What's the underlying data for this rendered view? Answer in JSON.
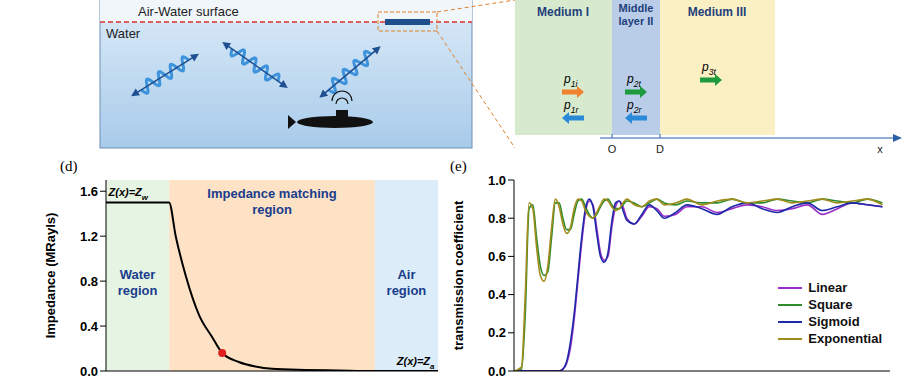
{
  "diagram": {
    "scene": {
      "surface_label": "Air-Water surface",
      "medium_label": "Water"
    },
    "layers": {
      "labels": [
        "Medium I",
        "Middle layer II",
        "Medium III"
      ],
      "waves": [
        "p1i",
        "p2t",
        "p3t",
        "p1r",
        "p2r"
      ],
      "axis": [
        "O",
        "D",
        "x"
      ]
    }
  },
  "chart_data": [
    {
      "type": "line",
      "title": "(d)",
      "y_label": "Impedance (MRayls)",
      "x": [
        0,
        1.9,
        2.1,
        2.4,
        2.8,
        3.2,
        3.5,
        4.0,
        4.5,
        5,
        6,
        7,
        8.1,
        10
      ],
      "values": [
        1.5,
        1.5,
        1.2,
        0.85,
        0.5,
        0.3,
        0.16,
        0.08,
        0.04,
        0.02,
        0.01,
        0.005,
        0.0004,
        0.0004
      ],
      "color": "#000000",
      "xlim": [
        0,
        10
      ],
      "ylim": [
        0,
        1.7
      ],
      "yticks": [
        {
          "value": 0,
          "label": "0.0"
        },
        0.4,
        0.8,
        1.2,
        1.6
      ],
      "tick_labels": "y",
      "regions": [
        {
          "label": "Water region",
          "x": [
            0,
            1.9
          ],
          "color": "#e6f4e4"
        },
        {
          "label": "Impedance matching region",
          "x": [
            1.9,
            8.1
          ],
          "color": "#fde2c6"
        },
        {
          "label": "Air region",
          "x": [
            8.1,
            10
          ],
          "color": "#dcecf9"
        }
      ],
      "annotations": [
        {
          "text": "Z(x)=Zw",
          "x": 0,
          "y": 1.5
        },
        {
          "text": "Z(x)=Za",
          "x": 10,
          "y": 0
        }
      ],
      "marker_point": {
        "x": 3.5,
        "y": 0.16,
        "color": "#e02020"
      }
    },
    {
      "type": "line",
      "title": "(e)",
      "y_label": "transmission coefficient",
      "x": [
        0,
        2,
        3,
        4,
        5,
        6,
        7,
        8,
        9,
        10,
        11,
        12,
        13,
        14,
        15,
        16,
        17,
        18,
        19,
        20,
        21,
        22,
        23,
        24,
        25,
        26,
        27,
        28,
        29,
        30,
        32,
        34,
        36,
        38,
        40,
        43,
        46,
        50,
        54,
        58,
        62,
        66,
        70,
        74,
        78,
        82,
        86,
        90,
        94,
        98
      ],
      "series": [
        {
          "name": "Linear",
          "color": "#9b30c8",
          "values": [
            0,
            0,
            0,
            0,
            0,
            0,
            0,
            0,
            0,
            0,
            0,
            0,
            0.01,
            0.04,
            0.12,
            0.27,
            0.47,
            0.67,
            0.83,
            0.89,
            0.87,
            0.75,
            0.62,
            0.58,
            0.6,
            0.75,
            0.86,
            0.89,
            0.86,
            0.8,
            0.77,
            0.81,
            0.86,
            0.85,
            0.81,
            0.82,
            0.86,
            0.86,
            0.83,
            0.85,
            0.87,
            0.86,
            0.84,
            0.85,
            0.87,
            0.82,
            0.85,
            0.88,
            0.87,
            0.86
          ]
        },
        {
          "name": "Square",
          "color": "#2e8b2e",
          "values": [
            0,
            0.01,
            0.3,
            0.85,
            0.87,
            0.7,
            0.55,
            0.5,
            0.52,
            0.7,
            0.88,
            0.88,
            0.8,
            0.74,
            0.74,
            0.82,
            0.89,
            0.9,
            0.86,
            0.82,
            0.8,
            0.82,
            0.86,
            0.89,
            0.9,
            0.87,
            0.85,
            0.85,
            0.87,
            0.89,
            0.88,
            0.86,
            0.88,
            0.9,
            0.88,
            0.87,
            0.89,
            0.88,
            0.88,
            0.9,
            0.88,
            0.88,
            0.9,
            0.89,
            0.88,
            0.9,
            0.89,
            0.88,
            0.9,
            0.88
          ]
        },
        {
          "name": "Sigmoid",
          "color": "#1f2aa8",
          "values": [
            0,
            0,
            0,
            0,
            0,
            0,
            0,
            0,
            0,
            0,
            0,
            0,
            0.01,
            0.05,
            0.15,
            0.3,
            0.5,
            0.7,
            0.85,
            0.9,
            0.86,
            0.72,
            0.6,
            0.57,
            0.62,
            0.78,
            0.88,
            0.89,
            0.84,
            0.79,
            0.77,
            0.82,
            0.87,
            0.84,
            0.8,
            0.83,
            0.87,
            0.85,
            0.82,
            0.86,
            0.88,
            0.85,
            0.83,
            0.86,
            0.88,
            0.84,
            0.86,
            0.88,
            0.87,
            0.86
          ]
        },
        {
          "name": "Exponential",
          "color": "#a08c1a",
          "values": [
            0,
            0.02,
            0.4,
            0.88,
            0.85,
            0.65,
            0.5,
            0.47,
            0.55,
            0.75,
            0.9,
            0.86,
            0.77,
            0.72,
            0.75,
            0.85,
            0.9,
            0.89,
            0.84,
            0.81,
            0.8,
            0.83,
            0.87,
            0.9,
            0.89,
            0.86,
            0.84,
            0.85,
            0.88,
            0.9,
            0.87,
            0.86,
            0.89,
            0.9,
            0.87,
            0.88,
            0.9,
            0.87,
            0.89,
            0.9,
            0.88,
            0.89,
            0.9,
            0.88,
            0.89,
            0.9,
            0.88,
            0.89,
            0.9,
            0.87
          ]
        }
      ],
      "xlim": [
        0,
        100
      ],
      "ylim": [
        0,
        1
      ],
      "yticks": [
        {
          "value": 0,
          "label": "0.0"
        },
        0.2,
        0.4,
        0.6,
        0.8,
        {
          "value": 1,
          "label": "1.0"
        }
      ],
      "tick_labels": "y",
      "legend": "lower right"
    }
  ]
}
